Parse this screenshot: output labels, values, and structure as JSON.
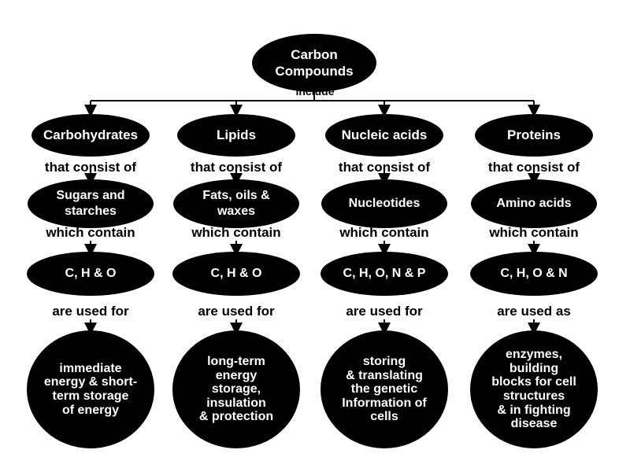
{
  "root": {
    "label": "Carbon\nCompounds"
  },
  "root_link": "include",
  "columns": [
    {
      "category": "Carbohydrates",
      "link1": "that consist of",
      "subunit": "Sugars and\nstarches",
      "link2": "which contain",
      "elements": "C, H & O",
      "link3": "are used for",
      "function": "immediate\nenergy & short-\nterm storage\nof energy"
    },
    {
      "category": "Lipids",
      "link1": "that consist of",
      "subunit": "Fats, oils &\nwaxes",
      "link2": "which contain",
      "elements": "C, H & O",
      "link3": "are used for",
      "function": "long-term\nenergy\nstorage,\ninsulation\n& protection"
    },
    {
      "category": "Nucleic acids",
      "link1": "that consist of",
      "subunit": "Nucleotides",
      "link2": "which contain",
      "elements": "C, H, O, N & P",
      "link3": "are used for",
      "function": "storing\n& translating\nthe genetic\nInformation of\ncells"
    },
    {
      "category": "Proteins",
      "link1": "that consist of",
      "subunit": "Amino acids",
      "link2": "which contain",
      "elements": "C, H, O & N",
      "link3": "are used as",
      "function": "enzymes,\nbuilding\nblocks for cell\nstructures\n& in fighting\ndisease"
    }
  ],
  "colors": {
    "node_fill": "#000000",
    "node_text": "#ffffff",
    "link_text": "#000000",
    "line": "#000000"
  }
}
